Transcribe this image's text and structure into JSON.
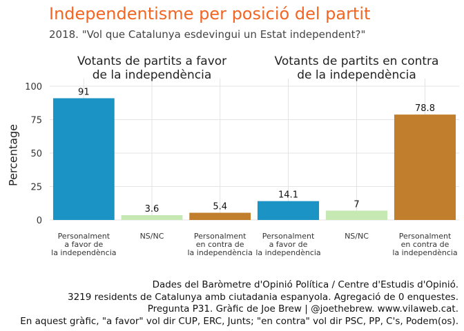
{
  "title": "Independentisme per posició del partit",
  "subtitle": "2018. \"Vol que Catalunya esdevingui un Estat independent?\"",
  "caption": [
    "Dades del Baròmetre d'Opinió Política / Centre d'Estudis d'Opinió.",
    "3219 residents de Catalunya amb ciutadania espanyola. Agregació de 0 enquestes.",
    "Pregunta P31. Gràfic de Joe Brew | @joethebrew. www.vilaweb.cat.",
    "En aquest gràfic, \"a favor\" vol dir CUP, ERC, Junts; \"en contra\" vol dir PSC, PP, C's, Podem(os)."
  ],
  "colors": {
    "favor": "#1b93c4",
    "nsnc": "#c6e8b3",
    "contra": "#c17f2e",
    "title": "#f26522"
  },
  "chart_data": {
    "type": "bar",
    "ylabel": "Percentage",
    "ylim": [
      0,
      100
    ],
    "yticks": [
      0,
      25,
      50,
      75,
      100
    ],
    "grid": true,
    "categories": [
      [
        "Personalment",
        "a favor de",
        "la independència"
      ],
      [
        "NS/NC"
      ],
      [
        "Personalment",
        "en contra de",
        "la independència"
      ]
    ],
    "category_colors": [
      "favor",
      "nsnc",
      "contra"
    ],
    "panels": [
      {
        "title": [
          "Votants de partits a favor",
          "de la independència"
        ],
        "values": [
          91,
          3.6,
          5.4
        ]
      },
      {
        "title": [
          "Votants de partits en contra",
          "de la independència"
        ],
        "values": [
          14.1,
          7,
          78.8
        ]
      }
    ]
  }
}
